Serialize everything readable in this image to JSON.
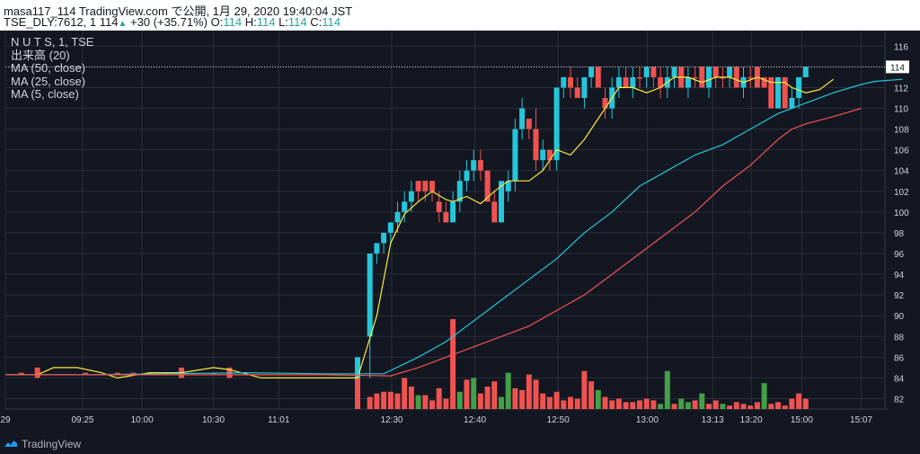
{
  "header": {
    "line1": "masa117_114 TradingView.com で公開, 1月 29, 2020 19:40:04 JST",
    "line2_prefix": "TSE_DLY:7612, 1 114",
    "change": "+30 (+35.71%)",
    "o_label": "O:",
    "o_val": "114",
    "h_label": "H:",
    "h_val": "114",
    "l_label": "L:",
    "l_val": "114",
    "c_label": "C:",
    "c_val": "114"
  },
  "legend": {
    "symbol": "N U T S, 1, TSE",
    "volume": "出来高 (20)",
    "ma50": "MA (50, close)",
    "ma25": "MA (25, close)",
    "ma5": "MA (5, close)"
  },
  "footer": {
    "brand": "TradingView"
  },
  "colors": {
    "bg": "#131722",
    "grid": "#2a2e39",
    "up": "#26c6da",
    "down": "#ef5350",
    "vol_up": "#43a047",
    "vol_down": "#ef5350",
    "ma5": "#ffeb3b",
    "ma25": "#26c6da",
    "ma50": "#ef5350",
    "axis_text": "#d1d4dc"
  },
  "chart_data": {
    "type": "line",
    "title": "",
    "ylim": [
      81,
      117.5
    ],
    "y_ticks": [
      "82",
      "84",
      "86",
      "88",
      "90",
      "92",
      "94",
      "96",
      "98",
      "100",
      "102",
      "104",
      "106",
      "108",
      "110",
      "112",
      "114",
      "116"
    ],
    "x_ticks": [
      "29",
      "09:25",
      "10:00",
      "10:30",
      "11:01",
      "12:30",
      "12:40",
      "12:50",
      "13:00",
      "13:13",
      "13:20",
      "15:00",
      "15:07"
    ],
    "last_price": "114",
    "candles": [
      {
        "t": 2,
        "o": 84.5,
        "h": 84.5,
        "l": 84.5,
        "c": 84.5
      },
      {
        "t": 4,
        "o": 85,
        "h": 85,
        "l": 84,
        "c": 84
      },
      {
        "t": 10,
        "o": 84.5,
        "h": 84.5,
        "l": 84.5,
        "c": 84.5
      },
      {
        "t": 14,
        "o": 84.5,
        "h": 84.5,
        "l": 84.5,
        "c": 84.5
      },
      {
        "t": 16,
        "o": 84.5,
        "h": 84.5,
        "l": 84.5,
        "c": 84.5
      },
      {
        "t": 18,
        "o": 84.5,
        "h": 84.5,
        "l": 84.5,
        "c": 84.5
      },
      {
        "t": 20,
        "o": 84.5,
        "h": 84.5,
        "l": 84.5,
        "c": 84.5
      },
      {
        "t": 22,
        "o": 85,
        "h": 85,
        "l": 84,
        "c": 84
      },
      {
        "t": 26,
        "o": 84.5,
        "h": 84.5,
        "l": 84.5,
        "c": 84.5
      },
      {
        "t": 28,
        "o": 85,
        "h": 85,
        "l": 84,
        "c": 84
      },
      {
        "t": 44,
        "o": 84,
        "h": 86,
        "l": 84,
        "c": 86
      },
      {
        "t": 45,
        "o": 88,
        "h": 96,
        "l": 84,
        "c": 96
      },
      {
        "t": 46,
        "o": 96,
        "h": 97,
        "l": 95,
        "c": 97
      },
      {
        "t": 47,
        "o": 97,
        "h": 98,
        "l": 96,
        "c": 98
      },
      {
        "t": 48,
        "o": 98,
        "h": 99,
        "l": 97,
        "c": 99
      },
      {
        "t": 49,
        "o": 99,
        "h": 101,
        "l": 98,
        "c": 100
      },
      {
        "t": 50,
        "o": 100,
        "h": 102,
        "l": 99,
        "c": 101
      },
      {
        "t": 51,
        "o": 101,
        "h": 103,
        "l": 100,
        "c": 102
      },
      {
        "t": 52,
        "o": 103,
        "h": 103,
        "l": 101,
        "c": 102
      },
      {
        "t": 53,
        "o": 103,
        "h": 103,
        "l": 101,
        "c": 102
      },
      {
        "t": 54,
        "o": 103,
        "h": 103,
        "l": 101,
        "c": 102
      },
      {
        "t": 55,
        "o": 101,
        "h": 102,
        "l": 99,
        "c": 100
      },
      {
        "t": 56,
        "o": 100,
        "h": 101,
        "l": 99,
        "c": 99
      },
      {
        "t": 57,
        "o": 99,
        "h": 102,
        "l": 99,
        "c": 101
      },
      {
        "t": 58,
        "o": 101,
        "h": 104,
        "l": 100,
        "c": 103
      },
      {
        "t": 59,
        "o": 103,
        "h": 105,
        "l": 102,
        "c": 104
      },
      {
        "t": 60,
        "o": 104,
        "h": 106,
        "l": 103,
        "c": 105
      },
      {
        "t": 61,
        "o": 105,
        "h": 106,
        "l": 103,
        "c": 104
      },
      {
        "t": 62,
        "o": 104,
        "h": 104,
        "l": 101,
        "c": 101
      },
      {
        "t": 63,
        "o": 101,
        "h": 102,
        "l": 99,
        "c": 99
      },
      {
        "t": 64,
        "o": 99,
        "h": 103,
        "l": 99,
        "c": 103
      },
      {
        "t": 65,
        "o": 102,
        "h": 104,
        "l": 101,
        "c": 103
      },
      {
        "t": 66,
        "o": 103,
        "h": 109,
        "l": 102,
        "c": 108
      },
      {
        "t": 67,
        "o": 108,
        "h": 111,
        "l": 107,
        "c": 110
      },
      {
        "t": 68,
        "o": 109,
        "h": 109,
        "l": 107,
        "c": 108
      },
      {
        "t": 69,
        "o": 108,
        "h": 110,
        "l": 104,
        "c": 105
      },
      {
        "t": 70,
        "o": 105,
        "h": 107,
        "l": 104,
        "c": 106
      },
      {
        "t": 71,
        "o": 106,
        "h": 106,
        "l": 104,
        "c": 105
      },
      {
        "t": 72,
        "o": 105,
        "h": 112,
        "l": 104,
        "c": 112
      },
      {
        "t": 73,
        "o": 112,
        "h": 113,
        "l": 111,
        "c": 113
      },
      {
        "t": 74,
        "o": 113,
        "h": 114,
        "l": 111,
        "c": 112
      },
      {
        "t": 75,
        "o": 112,
        "h": 113,
        "l": 111,
        "c": 111
      },
      {
        "t": 76,
        "o": 111,
        "h": 113,
        "l": 110,
        "c": 113
      },
      {
        "t": 77,
        "o": 113,
        "h": 114,
        "l": 112,
        "c": 114
      },
      {
        "t": 78,
        "o": 114,
        "h": 114,
        "l": 112,
        "c": 112
      },
      {
        "t": 79,
        "o": 111,
        "h": 112,
        "l": 109,
        "c": 110
      },
      {
        "t": 80,
        "o": 110,
        "h": 113,
        "l": 109,
        "c": 112
      },
      {
        "t": 81,
        "o": 112,
        "h": 114,
        "l": 111,
        "c": 113
      },
      {
        "t": 82,
        "o": 113,
        "h": 114,
        "l": 112,
        "c": 112
      },
      {
        "t": 83,
        "o": 112,
        "h": 114,
        "l": 111,
        "c": 113
      },
      {
        "t": 84,
        "o": 113,
        "h": 114,
        "l": 112,
        "c": 113
      },
      {
        "t": 85,
        "o": 113,
        "h": 114,
        "l": 112,
        "c": 114
      },
      {
        "t": 86,
        "o": 114,
        "h": 114,
        "l": 112,
        "c": 113
      },
      {
        "t": 87,
        "o": 113,
        "h": 114,
        "l": 111,
        "c": 112
      },
      {
        "t": 88,
        "o": 112,
        "h": 114,
        "l": 111,
        "c": 113
      },
      {
        "t": 89,
        "o": 113,
        "h": 114,
        "l": 112,
        "c": 114
      },
      {
        "t": 90,
        "o": 114,
        "h": 114,
        "l": 112,
        "c": 112
      },
      {
        "t": 91,
        "o": 112,
        "h": 114,
        "l": 111,
        "c": 113
      },
      {
        "t": 92,
        "o": 113,
        "h": 114,
        "l": 112,
        "c": 113
      },
      {
        "t": 93,
        "o": 114,
        "h": 114,
        "l": 112,
        "c": 112
      },
      {
        "t": 94,
        "o": 112,
        "h": 114,
        "l": 111,
        "c": 114
      },
      {
        "t": 95,
        "o": 114,
        "h": 114,
        "l": 112,
        "c": 113
      },
      {
        "t": 96,
        "o": 113,
        "h": 114,
        "l": 112,
        "c": 113
      },
      {
        "t": 97,
        "o": 113,
        "h": 114,
        "l": 112,
        "c": 114
      },
      {
        "t": 98,
        "o": 114,
        "h": 114,
        "l": 112,
        "c": 112
      },
      {
        "t": 99,
        "o": 112,
        "h": 114,
        "l": 111,
        "c": 113
      },
      {
        "t": 100,
        "o": 113,
        "h": 114,
        "l": 112,
        "c": 113
      },
      {
        "t": 101,
        "o": 114,
        "h": 114,
        "l": 112,
        "c": 112
      },
      {
        "t": 102,
        "o": 113,
        "h": 113,
        "l": 112,
        "c": 112
      },
      {
        "t": 103,
        "o": 113,
        "h": 113,
        "l": 110,
        "c": 110
      },
      {
        "t": 104,
        "o": 110,
        "h": 113,
        "l": 110,
        "c": 113
      },
      {
        "t": 105,
        "o": 113,
        "h": 113,
        "l": 110,
        "c": 110
      },
      {
        "t": 106,
        "o": 110,
        "h": 112,
        "l": 110,
        "c": 111
      },
      {
        "t": 107,
        "o": 111,
        "h": 113,
        "l": 110,
        "c": 113
      },
      {
        "t": 108,
        "o": 113,
        "h": 114,
        "l": 113,
        "c": 114
      }
    ],
    "volume": [
      {
        "t": 44,
        "v": 26,
        "up": false
      },
      {
        "t": 45,
        "v": 7,
        "up": false
      },
      {
        "t": 46,
        "v": 9,
        "up": false
      },
      {
        "t": 47,
        "v": 10,
        "up": false
      },
      {
        "t": 48,
        "v": 10,
        "up": false
      },
      {
        "t": 49,
        "v": 9,
        "up": false
      },
      {
        "t": 50,
        "v": 18,
        "up": false
      },
      {
        "t": 51,
        "v": 13,
        "up": false
      },
      {
        "t": 52,
        "v": 8,
        "up": true
      },
      {
        "t": 53,
        "v": 8,
        "up": false
      },
      {
        "t": 54,
        "v": 5,
        "up": false
      },
      {
        "t": 55,
        "v": 12,
        "up": false
      },
      {
        "t": 56,
        "v": 6,
        "up": false
      },
      {
        "t": 57,
        "v": 52,
        "up": false
      },
      {
        "t": 58,
        "v": 10,
        "up": true
      },
      {
        "t": 59,
        "v": 17,
        "up": false
      },
      {
        "t": 60,
        "v": 18,
        "up": true
      },
      {
        "t": 61,
        "v": 9,
        "up": false
      },
      {
        "t": 62,
        "v": 13,
        "up": false
      },
      {
        "t": 63,
        "v": 16,
        "up": false
      },
      {
        "t": 64,
        "v": 7,
        "up": true
      },
      {
        "t": 65,
        "v": 21,
        "up": true
      },
      {
        "t": 66,
        "v": 12,
        "up": false
      },
      {
        "t": 67,
        "v": 11,
        "up": false
      },
      {
        "t": 68,
        "v": 20,
        "up": false
      },
      {
        "t": 69,
        "v": 17,
        "up": false
      },
      {
        "t": 70,
        "v": 9,
        "up": false
      },
      {
        "t": 71,
        "v": 7,
        "up": false
      },
      {
        "t": 72,
        "v": 10,
        "up": false
      },
      {
        "t": 73,
        "v": 5,
        "up": false
      },
      {
        "t": 74,
        "v": 7,
        "up": false
      },
      {
        "t": 75,
        "v": 6,
        "up": false
      },
      {
        "t": 76,
        "v": 22,
        "up": false
      },
      {
        "t": 77,
        "v": 16,
        "up": false
      },
      {
        "t": 78,
        "v": 11,
        "up": true
      },
      {
        "t": 79,
        "v": 7,
        "up": false
      },
      {
        "t": 80,
        "v": 5,
        "up": false
      },
      {
        "t": 81,
        "v": 6,
        "up": false
      },
      {
        "t": 82,
        "v": 4,
        "up": false
      },
      {
        "t": 83,
        "v": 4,
        "up": false
      },
      {
        "t": 84,
        "v": 5,
        "up": false
      },
      {
        "t": 85,
        "v": 6,
        "up": false
      },
      {
        "t": 86,
        "v": 5,
        "up": false
      },
      {
        "t": 87,
        "v": 3,
        "up": true
      },
      {
        "t": 88,
        "v": 22,
        "up": true
      },
      {
        "t": 89,
        "v": 3,
        "up": false
      },
      {
        "t": 90,
        "v": 6,
        "up": true
      },
      {
        "t": 91,
        "v": 4,
        "up": true
      },
      {
        "t": 92,
        "v": 5,
        "up": false
      },
      {
        "t": 93,
        "v": 9,
        "up": true
      },
      {
        "t": 94,
        "v": 3,
        "up": false
      },
      {
        "t": 95,
        "v": 5,
        "up": false
      },
      {
        "t": 96,
        "v": 3,
        "up": true
      },
      {
        "t": 97,
        "v": 2,
        "up": false
      },
      {
        "t": 98,
        "v": 4,
        "up": false
      },
      {
        "t": 99,
        "v": 3,
        "up": false
      },
      {
        "t": 100,
        "v": 2,
        "up": false
      },
      {
        "t": 101,
        "v": 4,
        "up": false
      },
      {
        "t": 102,
        "v": 15,
        "up": true
      },
      {
        "t": 103,
        "v": 3,
        "up": false
      },
      {
        "t": 104,
        "v": 4,
        "up": false
      },
      {
        "t": 105,
        "v": 2,
        "up": false
      },
      {
        "t": 106,
        "v": 6,
        "up": false
      },
      {
        "t": 107,
        "v": 9,
        "up": false
      },
      {
        "t": 108,
        "v": 6,
        "up": false
      },
      {
        "t": 0,
        "v": 0,
        "up": false
      }
    ],
    "series": [
      {
        "name": "MA (5, close)",
        "color": "#ffeb3b",
        "points": [
          [
            0,
            84.3
          ],
          [
            4,
            84.3
          ],
          [
            6,
            85
          ],
          [
            9,
            85
          ],
          [
            12,
            84.5
          ],
          [
            14,
            84
          ],
          [
            18,
            84.5
          ],
          [
            22,
            84.5
          ],
          [
            26,
            85
          ],
          [
            28,
            84.8
          ],
          [
            32,
            84
          ],
          [
            38,
            84
          ],
          [
            44,
            84
          ],
          [
            46,
            90
          ],
          [
            48,
            97
          ],
          [
            50,
            99.8
          ],
          [
            52,
            101
          ],
          [
            54,
            102
          ],
          [
            56,
            101.2
          ],
          [
            57,
            101
          ],
          [
            59,
            101.5
          ],
          [
            61,
            100.8
          ],
          [
            63,
            102
          ],
          [
            65,
            103
          ],
          [
            68,
            103
          ],
          [
            70,
            104
          ],
          [
            72,
            106
          ],
          [
            74,
            105.5
          ],
          [
            76,
            107
          ],
          [
            78,
            109
          ],
          [
            80,
            111
          ],
          [
            81,
            112
          ],
          [
            83,
            112
          ],
          [
            85,
            111.5
          ],
          [
            87,
            112
          ],
          [
            89,
            113
          ],
          [
            91,
            113
          ],
          [
            93,
            112.5
          ],
          [
            95,
            113
          ],
          [
            97,
            113
          ],
          [
            99,
            112.5
          ],
          [
            101,
            113
          ],
          [
            103,
            112.5
          ],
          [
            105,
            112.5
          ],
          [
            106,
            112
          ],
          [
            108,
            111.5
          ],
          [
            110,
            111.8
          ],
          [
            112,
            112.8
          ]
        ]
      },
      {
        "name": "MA (25, close)",
        "color": "#26c6da",
        "points": [
          [
            0,
            84.3
          ],
          [
            10,
            84.3
          ],
          [
            20,
            84.4
          ],
          [
            30,
            84.5
          ],
          [
            40,
            84.4
          ],
          [
            47,
            84.4
          ],
          [
            52,
            86
          ],
          [
            56,
            87.5
          ],
          [
            60,
            89.5
          ],
          [
            64,
            91.5
          ],
          [
            68,
            93.5
          ],
          [
            72,
            95.5
          ],
          [
            76,
            98
          ],
          [
            80,
            100
          ],
          [
            84,
            102.5
          ],
          [
            88,
            104
          ],
          [
            92,
            105.5
          ],
          [
            96,
            106.5
          ],
          [
            100,
            108
          ],
          [
            104,
            109.5
          ],
          [
            108,
            110.5
          ],
          [
            112,
            111.5
          ],
          [
            116,
            112.3
          ],
          [
            118,
            112.6
          ],
          [
            122,
            112.8
          ]
        ]
      },
      {
        "name": "MA (50, close)",
        "color": "#ef5350",
        "points": [
          [
            0,
            84.3
          ],
          [
            20,
            84.3
          ],
          [
            40,
            84.3
          ],
          [
            48,
            84.2
          ],
          [
            52,
            85
          ],
          [
            56,
            86
          ],
          [
            60,
            87
          ],
          [
            64,
            88
          ],
          [
            68,
            89
          ],
          [
            72,
            90.5
          ],
          [
            76,
            92
          ],
          [
            80,
            94
          ],
          [
            84,
            96
          ],
          [
            88,
            98
          ],
          [
            92,
            100
          ],
          [
            96,
            102.5
          ],
          [
            100,
            104.5
          ],
          [
            104,
            107
          ],
          [
            106,
            108
          ],
          [
            108,
            108.5
          ],
          [
            112,
            109.2
          ],
          [
            116,
            110
          ]
        ]
      }
    ]
  }
}
